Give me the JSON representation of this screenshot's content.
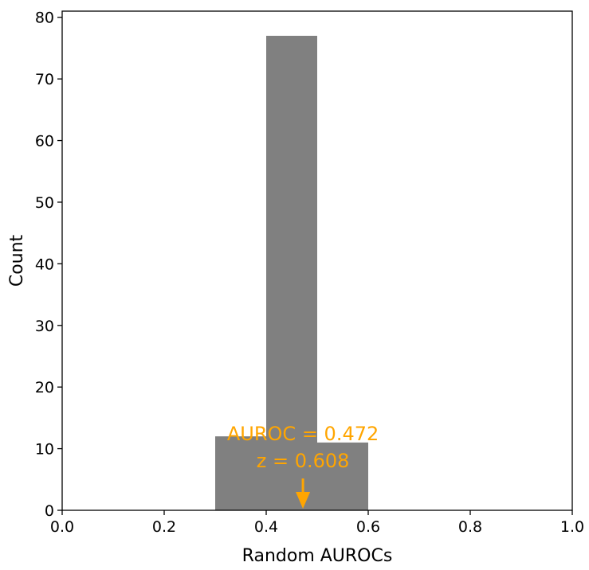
{
  "chart_data": {
    "type": "bar",
    "bins": [
      {
        "x0": 0.3,
        "x1": 0.4,
        "count": 12
      },
      {
        "x0": 0.4,
        "x1": 0.5,
        "count": 77
      },
      {
        "x0": 0.5,
        "x1": 0.6,
        "count": 11
      }
    ],
    "xlabel": "Random AUROCs",
    "ylabel": "Count",
    "xlim": [
      0.0,
      1.0
    ],
    "ylim": [
      0,
      81
    ],
    "xticks": [
      "0.0",
      "0.2",
      "0.4",
      "0.6",
      "0.8",
      "1.0"
    ],
    "xtick_values": [
      0.0,
      0.2,
      0.4,
      0.6,
      0.8,
      1.0
    ],
    "yticks": [
      "0",
      "10",
      "20",
      "30",
      "40",
      "50",
      "60",
      "70",
      "80"
    ],
    "ytick_values": [
      0,
      10,
      20,
      30,
      40,
      50,
      60,
      70,
      80
    ],
    "bar_color": "#808080",
    "grid": false,
    "annotation": {
      "line1": "AUROC = 0.472",
      "line2": "z = 0.608",
      "x": 0.472,
      "color": "#FFA500"
    }
  }
}
